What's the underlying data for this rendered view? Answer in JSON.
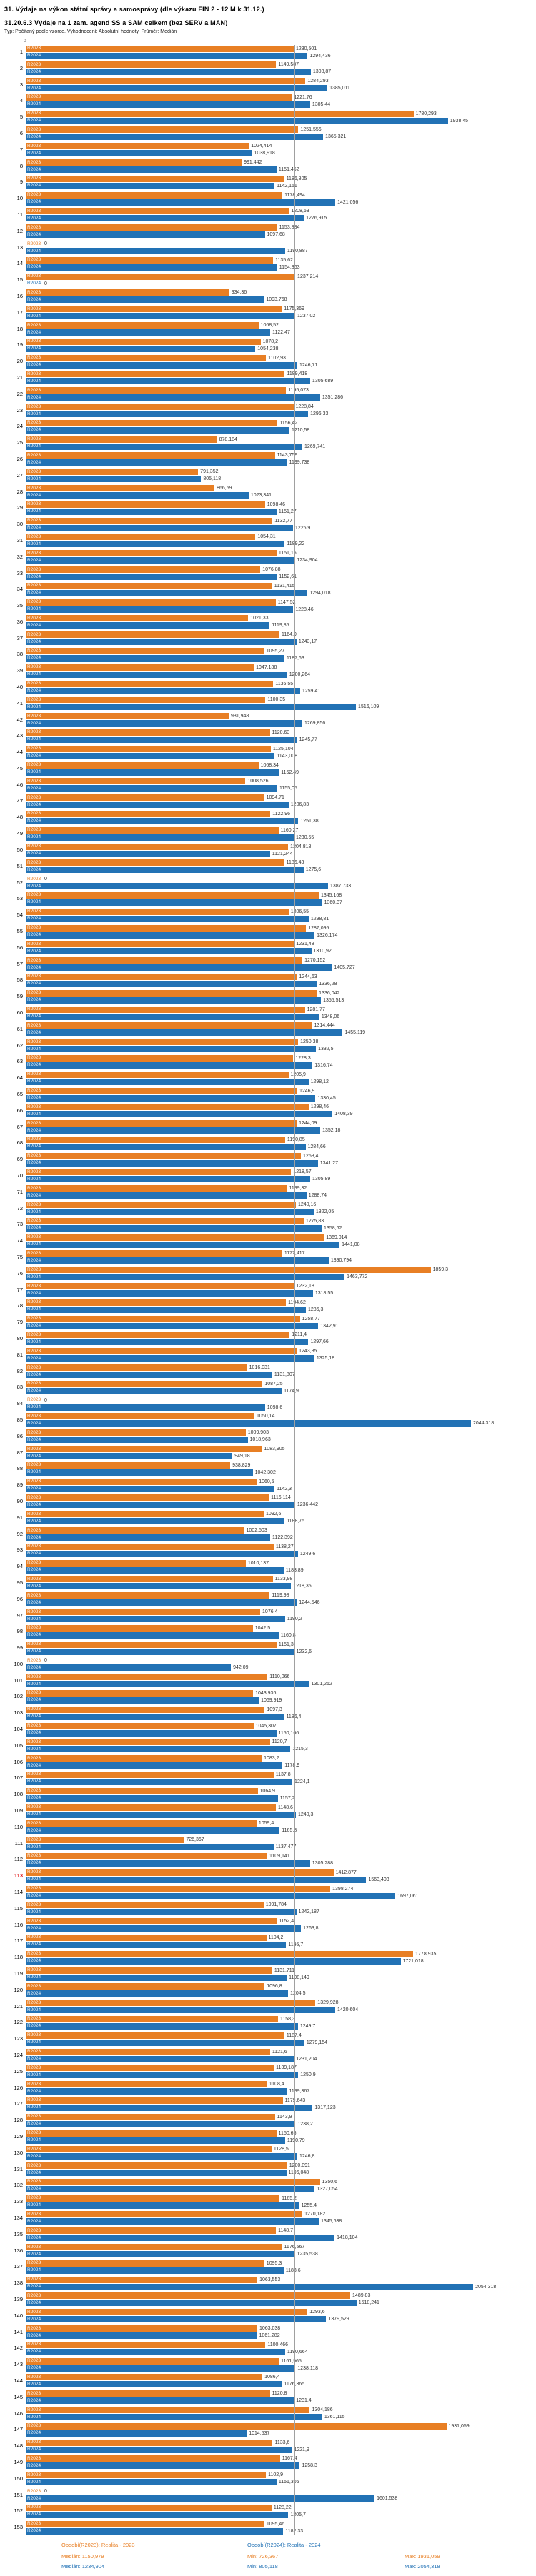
{
  "highlight_rows": [
    113
  ],
  "chart_data": {
    "type": "bar",
    "orientation": "horizontal",
    "title": "31. Výdaje na výkon státní správy a samosprávy (dle výkazu FIN 2 - 12 M k 31.12.)",
    "subtitle": "31.20.6.3 Výdaje na 1 zam. agend SS a SAM celkem (bez SERV a MAN)",
    "meta": "Typ: Počítaný podle vzorce. Vyhodnocení: Absolutní hodnoty. Průměr: Medián",
    "xlabel": "",
    "ylabel": "",
    "xlim": [
      0,
      2100
    ],
    "x_zero_label": "0",
    "grid": "two vertical median reference lines",
    "legend_position": "bottom",
    "categories": [
      1,
      2,
      3,
      4,
      5,
      6,
      7,
      8,
      9,
      10,
      11,
      12,
      13,
      14,
      15,
      16,
      17,
      18,
      19,
      20,
      21,
      22,
      23,
      24,
      25,
      26,
      27,
      28,
      29,
      30,
      31,
      32,
      33,
      34,
      35,
      36,
      37,
      38,
      39,
      40,
      41,
      42,
      43,
      44,
      45,
      46,
      47,
      48,
      49,
      50,
      51,
      52,
      53,
      54,
      55,
      56,
      57,
      58,
      59,
      60,
      61,
      62,
      63,
      64,
      65,
      66,
      67,
      68,
      69,
      70,
      71,
      72,
      73,
      74,
      75,
      76,
      77,
      78,
      79,
      80,
      81,
      82,
      83,
      84,
      85,
      86,
      87,
      88,
      89,
      90,
      91,
      92,
      93,
      94,
      95,
      96,
      97,
      98,
      99,
      100,
      101,
      102,
      103,
      104,
      105,
      106,
      107,
      108,
      109,
      110,
      111,
      112,
      113,
      114,
      115,
      116,
      117,
      118,
      119,
      120,
      121,
      122,
      123,
      124,
      125,
      126,
      127,
      128,
      129,
      130,
      131,
      132,
      133,
      134,
      135,
      136,
      137,
      138,
      139,
      140,
      141,
      142,
      143,
      144,
      145,
      146,
      147,
      148,
      149,
      150,
      151,
      152,
      153
    ],
    "series": [
      {
        "name": "R2023",
        "color": "#e87f24",
        "legend": "Období(R2023): Realita - 2023",
        "median": 1150.979,
        "median_label": "Medián: 1150,979",
        "min_label": "Min: 726,367",
        "max_label": "Max: 1931,059",
        "values": [
          1230.501,
          1149.587,
          1284.293,
          1221.76,
          1780.293,
          1251.556,
          1024.414,
          991.442,
          1186.805,
          1178.494,
          1208.63,
          1153.884,
          0,
          1135.62,
          1237.214,
          934.36,
          1175.369,
          1068.52,
          1078.2,
          1102.93,
          1189.418,
          1195.073,
          1228.84,
          1156.42,
          878.184,
          1143.759,
          791.352,
          866.59,
          1098.46,
          1132.77,
          1054.31,
          1151.16,
          1076.88,
          1131.415,
          1147.52,
          1021.33,
          1164.9,
          1095.27,
          1047.188,
          1136.55,
          1100.35,
          931.948,
          1120.63,
          1125.104,
          1068.34,
          1008.526,
          1094.71,
          1122.96,
          1160.27,
          1204.818,
          1186.43,
          0,
          1345.168,
          1206.55,
          1287.095,
          1231.48,
          1270.152,
          1244.63,
          1336.042,
          1281.77,
          1314.444,
          1250.38,
          1228.3,
          1205.9,
          1246.9,
          1298.46,
          1244.09,
          1190.85,
          1263.4,
          1218.57,
          1199.32,
          1240.16,
          1275.83,
          1369.014,
          1177.417,
          1859.3,
          1232.18,
          1194.62,
          1258.77,
          1211.4,
          1243.85,
          1016.031,
          1087.25,
          0,
          1050.14,
          1009.903,
          1083.905,
          938.829,
          1060.5,
          1116.114,
          1092.6,
          1002.503,
          1138.27,
          1010.137,
          1133.98,
          1119.98,
          1076.4,
          1042.5,
          1151.3,
          0,
          1110.066,
          1043.936,
          1097.3,
          1045.307,
          1120.7,
          1083.2,
          1137.8,
          1064.9,
          1148.6,
          1059.4,
          726.367,
          1109.141,
          1412.877,
          1398.274,
          1091.784,
          1152.4,
          1104.2,
          1778.935,
          1131.711,
          1096.8,
          1329.928,
          1158.3,
          1187.4,
          1121.6,
          1139.187,
          1108.4,
          1179.643,
          1143.9,
          1150.66,
          1128.5,
          1200.091,
          1350.6,
          1165.2,
          1270.182,
          1148.7,
          1176.567,
          1095.3,
          1063.553,
          1489.83,
          1293.6,
          1063.038,
          1100.466,
          1161.965,
          1086.4,
          1120.8,
          1304.186,
          1931.059,
          1133.6,
          1167.4,
          1102.9,
          0,
          1128.22,
          1095.46
        ]
      },
      {
        "name": "R2024",
        "color": "#2272b5",
        "legend": "Období(R2024): Realita - 2024",
        "median": 1234.904,
        "median_label": "Medián: 1234,904",
        "min_label": "Min: 805,118",
        "max_label": "Max: 2054,318",
        "values": [
          1294.436,
          1308.87,
          1385.011,
          1305.44,
          1938.45,
          1365.321,
          1038.918,
          1151.452,
          1142.151,
          1421.056,
          1276.915,
          1097.68,
          1190.887,
          1154.363,
          0,
          1093.768,
          1237.02,
          1122.47,
          1054.238,
          1246.71,
          1305.689,
          1351.286,
          1296.33,
          1210.58,
          1269.741,
          1199.738,
          805.118,
          1023.341,
          1151.27,
          1226.9,
          1189.22,
          1234.904,
          1152.61,
          1294.018,
          1228.46,
          1119.85,
          1243.17,
          1187.63,
          1200.264,
          1259.41,
          1516.109,
          1269.856,
          1245.77,
          1143.008,
          1162.49,
          1155.05,
          1206.83,
          1251.38,
          1230.55,
          1121.244,
          1275.6,
          1387.733,
          1360.37,
          1298.81,
          1326.174,
          1310.92,
          1405.727,
          1336.28,
          1355.513,
          1348.06,
          1455.119,
          1332.5,
          1316.74,
          1298.12,
          1330.45,
          1408.39,
          1352.18,
          1284.66,
          1341.27,
          1305.89,
          1288.74,
          1322.05,
          1358.62,
          1441.08,
          1390.794,
          1463.772,
          1318.55,
          1286.3,
          1342.91,
          1297.66,
          1325.18,
          1131.807,
          1174.9,
          1098.6,
          2044.318,
          1018.963,
          949.18,
          1042.302,
          1142.3,
          1236.442,
          1188.75,
          1122.392,
          1249.6,
          1183.89,
          1218.35,
          1244.546,
          1190.2,
          1160.8,
          1232.6,
          942.09,
          1301.252,
          1069.919,
          1186.4,
          1150.166,
          1215.3,
          1178.9,
          1224.1,
          1157.2,
          1240.3,
          1165.8,
          1137.477,
          1305.288,
          1563.403,
          1697.061,
          1242.187,
          1263.8,
          1195.7,
          1721.018,
          1198.149,
          1204.5,
          1420.604,
          1249.7,
          1279.154,
          1231.204,
          1250.9,
          1199.367,
          1317.123,
          1238.2,
          1190.79,
          1246.8,
          1196.048,
          1327.054,
          1255.4,
          1345.638,
          1418.104,
          1235.538,
          1183.6,
          2054.318,
          1518.241,
          1379.529,
          1061.282,
          1190.664,
          1238.118,
          1176.365,
          1231.4,
          1361.115,
          1014.537,
          1221.9,
          1258.3,
          1151.306,
          1601.538,
          1205.7,
          1182.33
        ]
      }
    ]
  }
}
